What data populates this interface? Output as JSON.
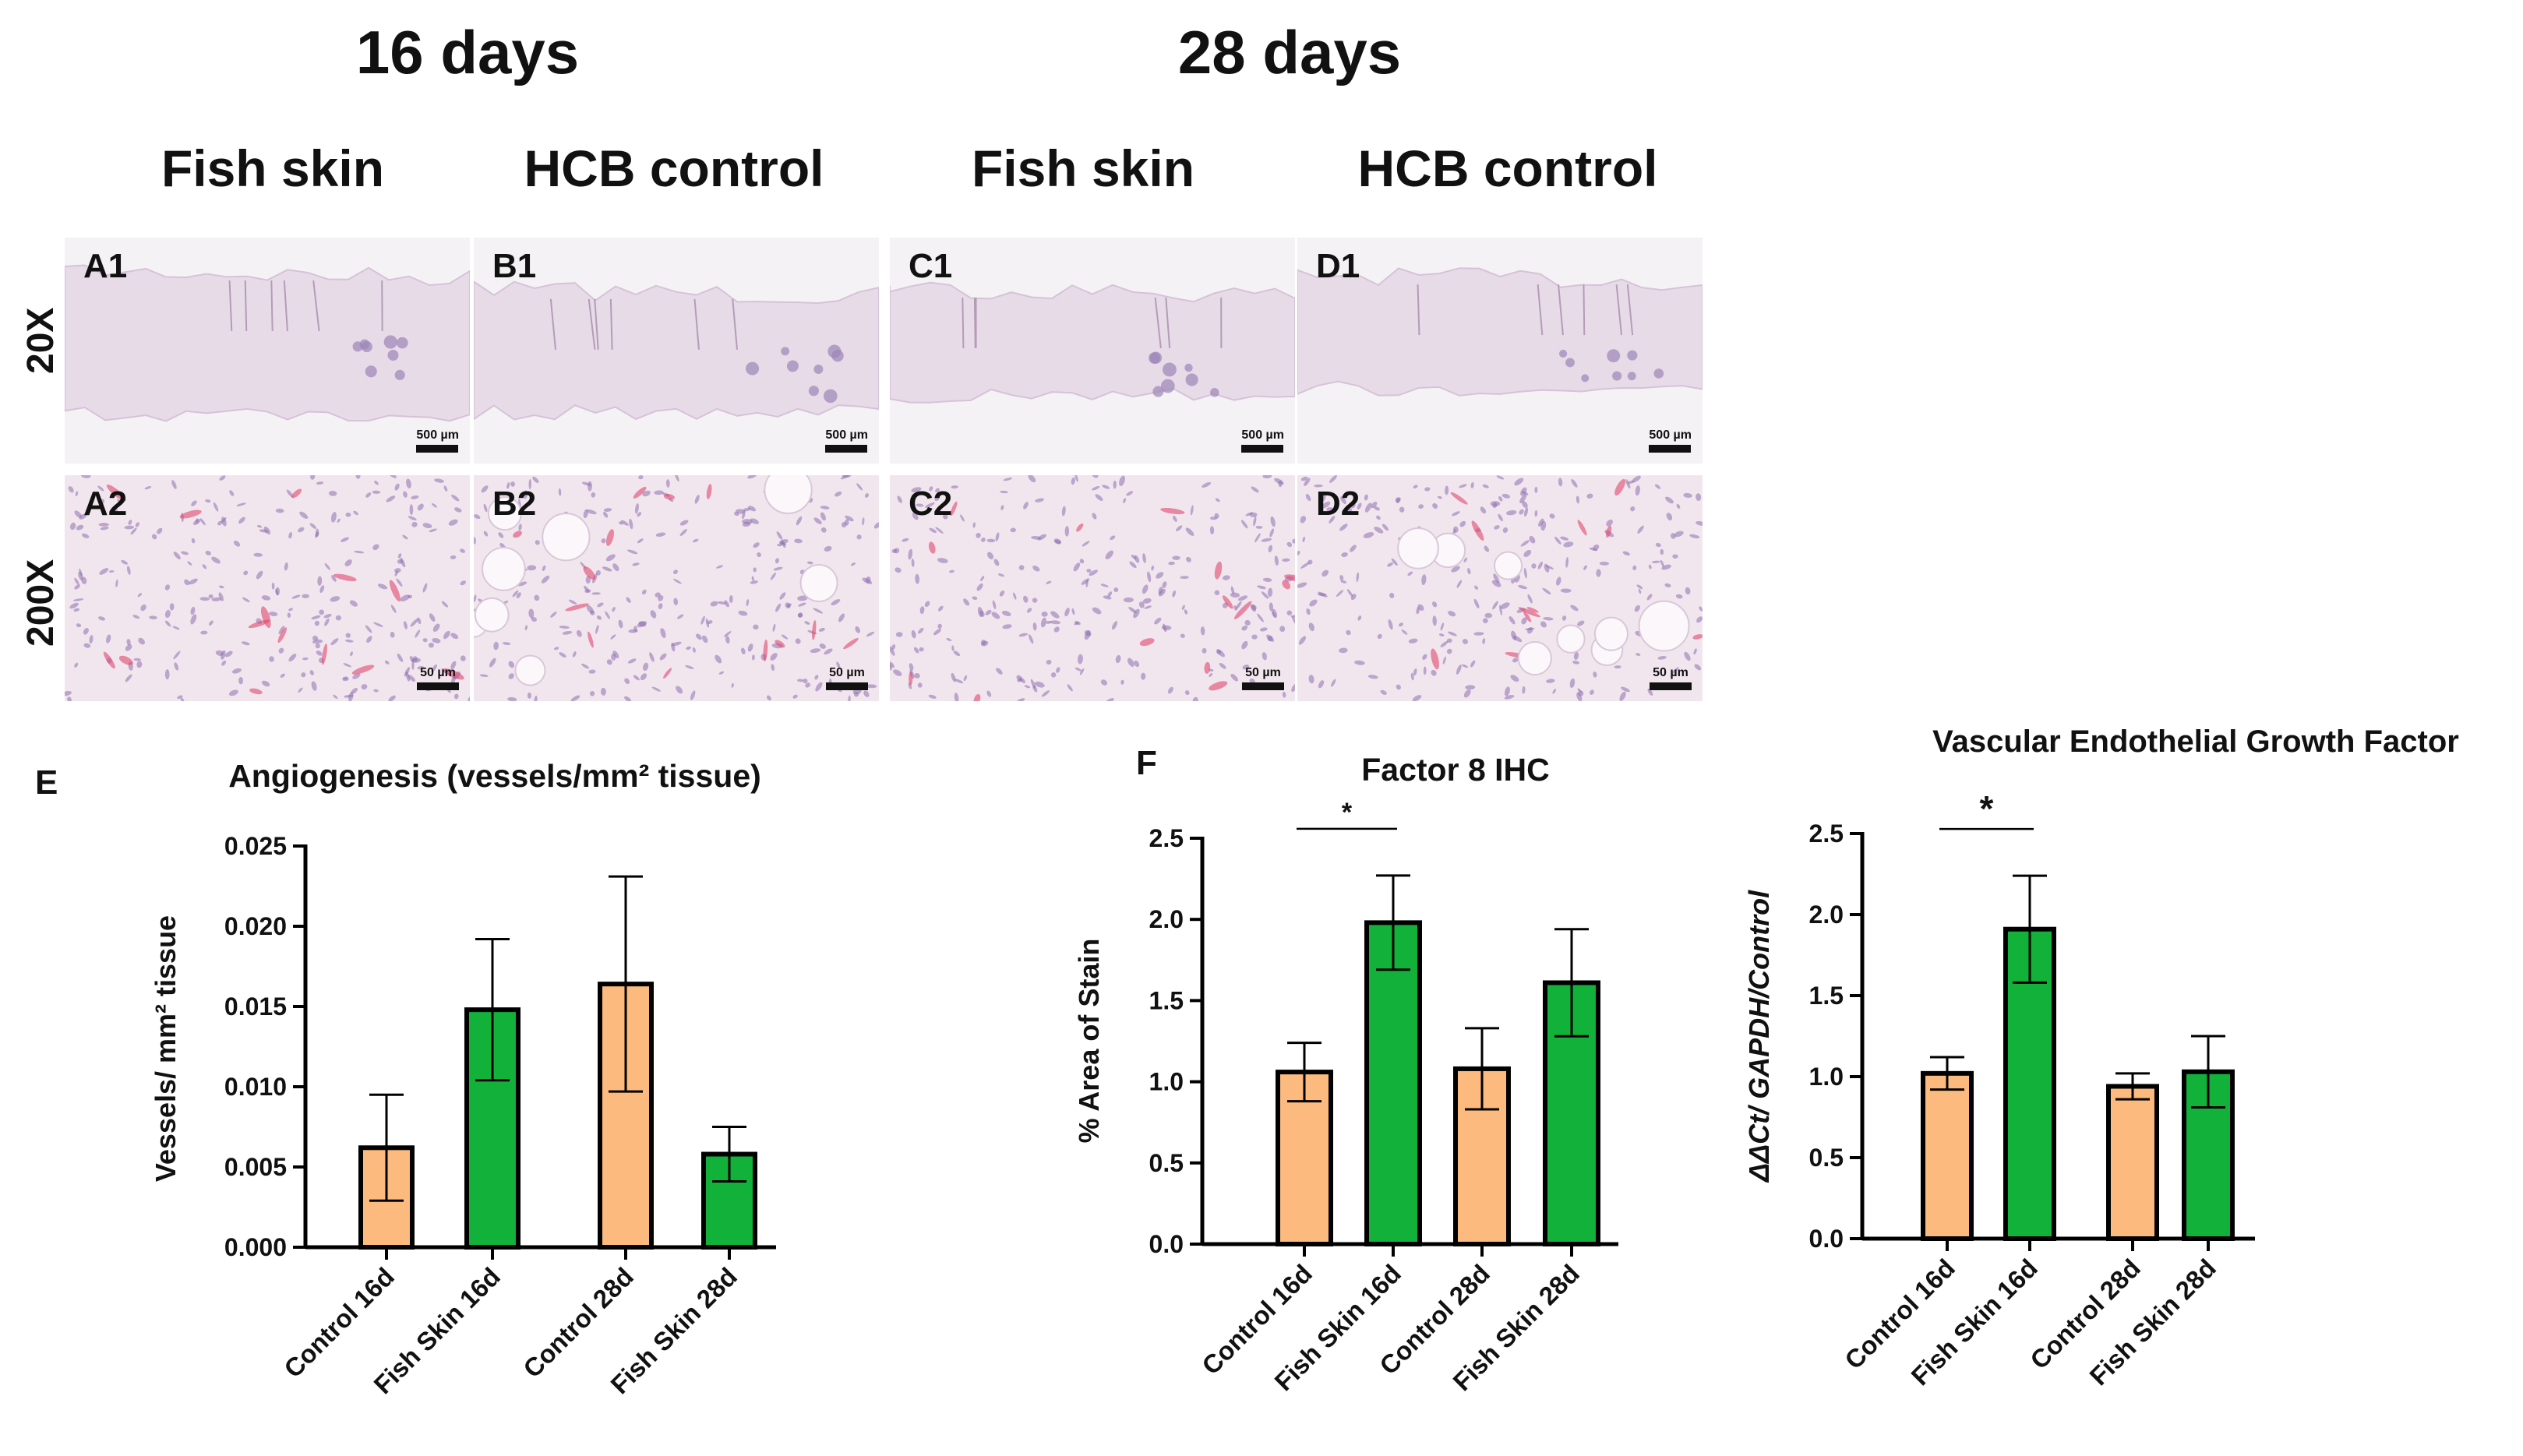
{
  "headers": {
    "day16": "16 days",
    "day28": "28 days",
    "groups": [
      "Fish skin",
      "HCB control",
      "Fish skin",
      "HCB control"
    ]
  },
  "row_labels": [
    "20X",
    "200X"
  ],
  "micrographs": [
    {
      "label": "A1",
      "scale": "500 µm",
      "stain": "low"
    },
    {
      "label": "B1",
      "scale": "500 µm",
      "stain": "low"
    },
    {
      "label": "C1",
      "scale": "500 µm",
      "stain": "low"
    },
    {
      "label": "D1",
      "scale": "500 µm",
      "stain": "low"
    },
    {
      "label": "A2",
      "scale": "50 µm",
      "stain": "high"
    },
    {
      "label": "B2",
      "scale": "50 µm",
      "stain": "high"
    },
    {
      "label": "C2",
      "scale": "50 µm",
      "stain": "high"
    },
    {
      "label": "D2",
      "scale": "50 µm",
      "stain": "high"
    }
  ],
  "panel_letters": {
    "E": "E",
    "F": "F"
  },
  "colors": {
    "control": "#FDBA7E",
    "fish": "#11B13A",
    "edge": "#000000"
  },
  "chart_data": [
    {
      "type": "bar",
      "title": "Angiogenesis (vessels/mm² tissue)",
      "ylabel": "Vessels/ mm² tissue",
      "categories": [
        "Control 16d",
        "Fish Skin 16d",
        "Control 28d",
        "Fish Skin 28d"
      ],
      "values": [
        0.0062,
        0.0148,
        0.0164,
        0.0058
      ],
      "errors": [
        0.0033,
        0.0044,
        0.0067,
        0.0017
      ],
      "ylim": [
        0,
        0.025
      ],
      "yticks": [
        "0.000",
        "0.005",
        "0.010",
        "0.015",
        "0.020",
        "0.025"
      ],
      "significance": []
    },
    {
      "type": "bar",
      "title": "Factor 8 IHC",
      "ylabel": "% Area of Stain",
      "categories": [
        "Control 16d",
        "Fish Skin 16d",
        "Control 28d",
        "Fish Skin 28d"
      ],
      "values": [
        1.06,
        1.98,
        1.08,
        1.61
      ],
      "errors": [
        0.18,
        0.29,
        0.25,
        0.33
      ],
      "ylim": [
        0,
        2.5
      ],
      "yticks": [
        "0.0",
        "0.5",
        "1.0",
        "1.5",
        "2.0",
        "2.5"
      ],
      "significance": [
        {
          "from": "Control 16d",
          "to": "Fish Skin 16d",
          "label": "*"
        }
      ]
    },
    {
      "type": "bar",
      "title": "Vascular Endothelial Growth Factor",
      "ylabel": "ΔΔCt/ GAPDH/Control",
      "categories": [
        "Control 16d",
        "Fish Skin 16d",
        "Control 28d",
        "Fish Skin 28d"
      ],
      "values": [
        1.02,
        1.91,
        0.94,
        1.03
      ],
      "errors": [
        0.1,
        0.33,
        0.08,
        0.22
      ],
      "ylim": [
        0,
        2.5
      ],
      "yticks": [
        "0.0",
        "0.5",
        "1.0",
        "1.5",
        "2.0",
        "2.5"
      ],
      "significance": [
        {
          "from": "Control 16d",
          "to": "Fish Skin 16d",
          "label": "*"
        }
      ]
    }
  ]
}
